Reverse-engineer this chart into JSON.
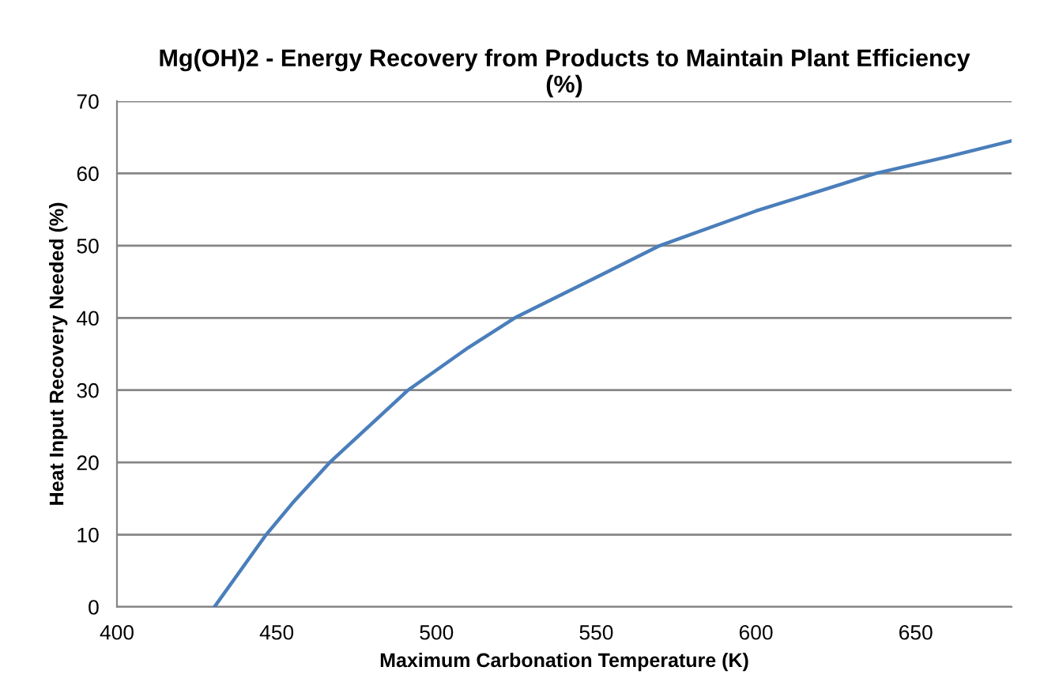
{
  "chart_data": {
    "type": "line",
    "title": "Mg(OH)2 - Energy Recovery from Products to Maintain Plant Efficiency\n(%)",
    "xlabel": "Maximum Carbonation Temperature (K)",
    "ylabel": "Heat Input Recovery Needed (%)",
    "x": [
      430.5,
      446.7,
      455,
      466.6,
      491.1,
      510,
      524.5,
      569.9,
      600,
      637.5,
      660,
      680
    ],
    "series": [
      {
        "color": "#4a7ebb",
        "values": [
          0,
          10,
          14.4,
          20,
          30,
          35.9,
          40,
          50,
          54.8,
          60,
          62.3,
          64.5
        ]
      }
    ],
    "xlim": [
      400,
      680
    ],
    "xticks": [
      400,
      450,
      500,
      550,
      600,
      650
    ],
    "ylim": [
      0,
      70
    ],
    "yticks": [
      0,
      10,
      20,
      30,
      40,
      50,
      60,
      70
    ],
    "grid": "y",
    "legend": false,
    "marker": "none",
    "line_style": "solid"
  }
}
